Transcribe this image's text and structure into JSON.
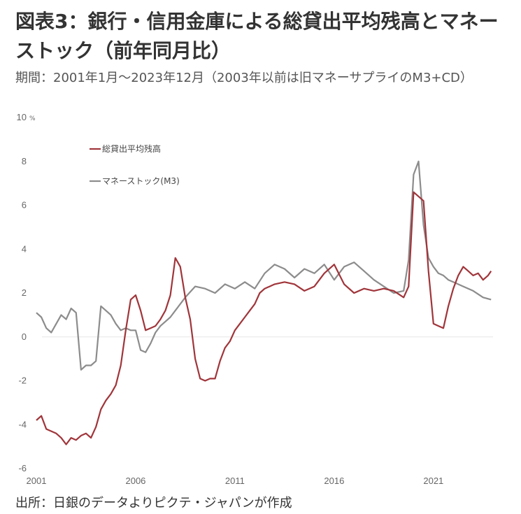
{
  "title": "図表3：銀行・信用金庫による総貸出平均残高とマネーストック（前年同月比）",
  "subtitle": "期間：2001年1月～2023年12月（2003年以前は旧マネーサプライのM3+CD）",
  "source": "出所：日銀のデータよりピクテ・ジャパンが作成",
  "chart_data": {
    "type": "line",
    "ylabel": "%",
    "ylim": [
      -6,
      10
    ],
    "yticks": [
      "-6",
      "-4",
      "-2",
      "0",
      "2",
      "4",
      "6",
      "8",
      "10"
    ],
    "xlim": [
      2001.0,
      2024.0
    ],
    "xticks": [
      "2001",
      "2006",
      "2011",
      "2016",
      "2021"
    ],
    "legend_position": "top-left",
    "grid": false,
    "series": [
      {
        "name": "総貸出平均残高",
        "color": "#a0353a",
        "x": [
          2001.0,
          2001.25,
          2001.5,
          2002.0,
          2002.25,
          2002.5,
          2002.75,
          2003.0,
          2003.25,
          2003.5,
          2003.75,
          2004.0,
          2004.25,
          2004.5,
          2004.75,
          2005.0,
          2005.25,
          2005.5,
          2005.75,
          2006.0,
          2006.25,
          2006.5,
          2006.75,
          2007.0,
          2007.25,
          2007.5,
          2007.75,
          2008.0,
          2008.25,
          2008.5,
          2008.75,
          2009.0,
          2009.25,
          2009.5,
          2009.75,
          2010.0,
          2010.25,
          2010.5,
          2010.75,
          2011.0,
          2011.25,
          2011.5,
          2011.75,
          2012.0,
          2012.25,
          2012.5,
          2012.75,
          2013.0,
          2013.5,
          2014.0,
          2014.5,
          2015.0,
          2015.5,
          2016.0,
          2016.5,
          2017.0,
          2017.5,
          2018.0,
          2018.5,
          2019.0,
          2019.5,
          2019.75,
          2020.0,
          2020.25,
          2020.5,
          2020.75,
          2021.0,
          2021.25,
          2021.5,
          2021.75,
          2022.0,
          2022.25,
          2022.5,
          2022.75,
          2023.0,
          2023.25,
          2023.5,
          2023.75,
          2023.9
        ],
        "values": [
          -3.8,
          -3.6,
          -4.2,
          -4.4,
          -4.6,
          -4.9,
          -4.6,
          -4.7,
          -4.5,
          -4.4,
          -4.6,
          -4.1,
          -3.3,
          -2.9,
          -2.6,
          -2.2,
          -1.3,
          0.3,
          1.7,
          1.9,
          1.2,
          0.3,
          0.4,
          0.5,
          0.8,
          1.2,
          1.9,
          3.6,
          3.2,
          1.8,
          0.8,
          -1.0,
          -1.9,
          -2.0,
          -1.9,
          -1.9,
          -1.1,
          -0.5,
          -0.2,
          0.3,
          0.6,
          0.9,
          1.2,
          1.5,
          2.0,
          2.2,
          2.3,
          2.4,
          2.5,
          2.4,
          2.1,
          2.3,
          2.9,
          3.3,
          2.4,
          2.0,
          2.2,
          2.1,
          2.2,
          2.1,
          1.8,
          2.3,
          6.6,
          6.4,
          6.2,
          3.0,
          0.6,
          0.5,
          0.4,
          1.4,
          2.2,
          2.8,
          3.2,
          3.0,
          2.8,
          2.9,
          2.6,
          2.8,
          3.0
        ]
      },
      {
        "name": "マネーストック(M3)",
        "color": "#8c8c8c",
        "x": [
          2001.0,
          2001.25,
          2001.5,
          2001.75,
          2002.0,
          2002.25,
          2002.5,
          2002.75,
          2003.0,
          2003.25,
          2003.5,
          2003.75,
          2004.0,
          2004.25,
          2004.5,
          2004.75,
          2005.0,
          2005.25,
          2005.5,
          2005.75,
          2006.0,
          2006.25,
          2006.5,
          2006.75,
          2007.0,
          2007.25,
          2007.5,
          2007.75,
          2008.0,
          2008.5,
          2009.0,
          2009.5,
          2010.0,
          2010.5,
          2011.0,
          2011.5,
          2012.0,
          2012.5,
          2013.0,
          2013.5,
          2014.0,
          2014.5,
          2015.0,
          2015.5,
          2016.0,
          2016.5,
          2017.0,
          2017.5,
          2018.0,
          2018.5,
          2019.0,
          2019.5,
          2019.75,
          2020.0,
          2020.25,
          2020.5,
          2020.75,
          2021.0,
          2021.25,
          2021.5,
          2021.75,
          2022.0,
          2022.5,
          2023.0,
          2023.5,
          2023.9
        ],
        "values": [
          1.1,
          0.9,
          0.4,
          0.2,
          0.6,
          1.0,
          0.8,
          1.3,
          1.1,
          -1.5,
          -1.3,
          -1.3,
          -1.1,
          1.4,
          1.2,
          1.0,
          0.6,
          0.3,
          0.4,
          0.3,
          0.3,
          -0.6,
          -0.7,
          -0.3,
          0.2,
          0.5,
          0.7,
          0.9,
          1.2,
          1.8,
          2.3,
          2.2,
          2.0,
          2.4,
          2.2,
          2.5,
          2.2,
          2.9,
          3.3,
          3.1,
          2.7,
          3.1,
          2.9,
          3.3,
          2.6,
          3.2,
          3.4,
          3.0,
          2.6,
          2.3,
          2.0,
          2.1,
          3.5,
          7.4,
          8.0,
          5.1,
          3.6,
          3.2,
          2.9,
          2.8,
          2.6,
          2.5,
          2.3,
          2.1,
          1.8,
          1.7
        ]
      }
    ]
  }
}
